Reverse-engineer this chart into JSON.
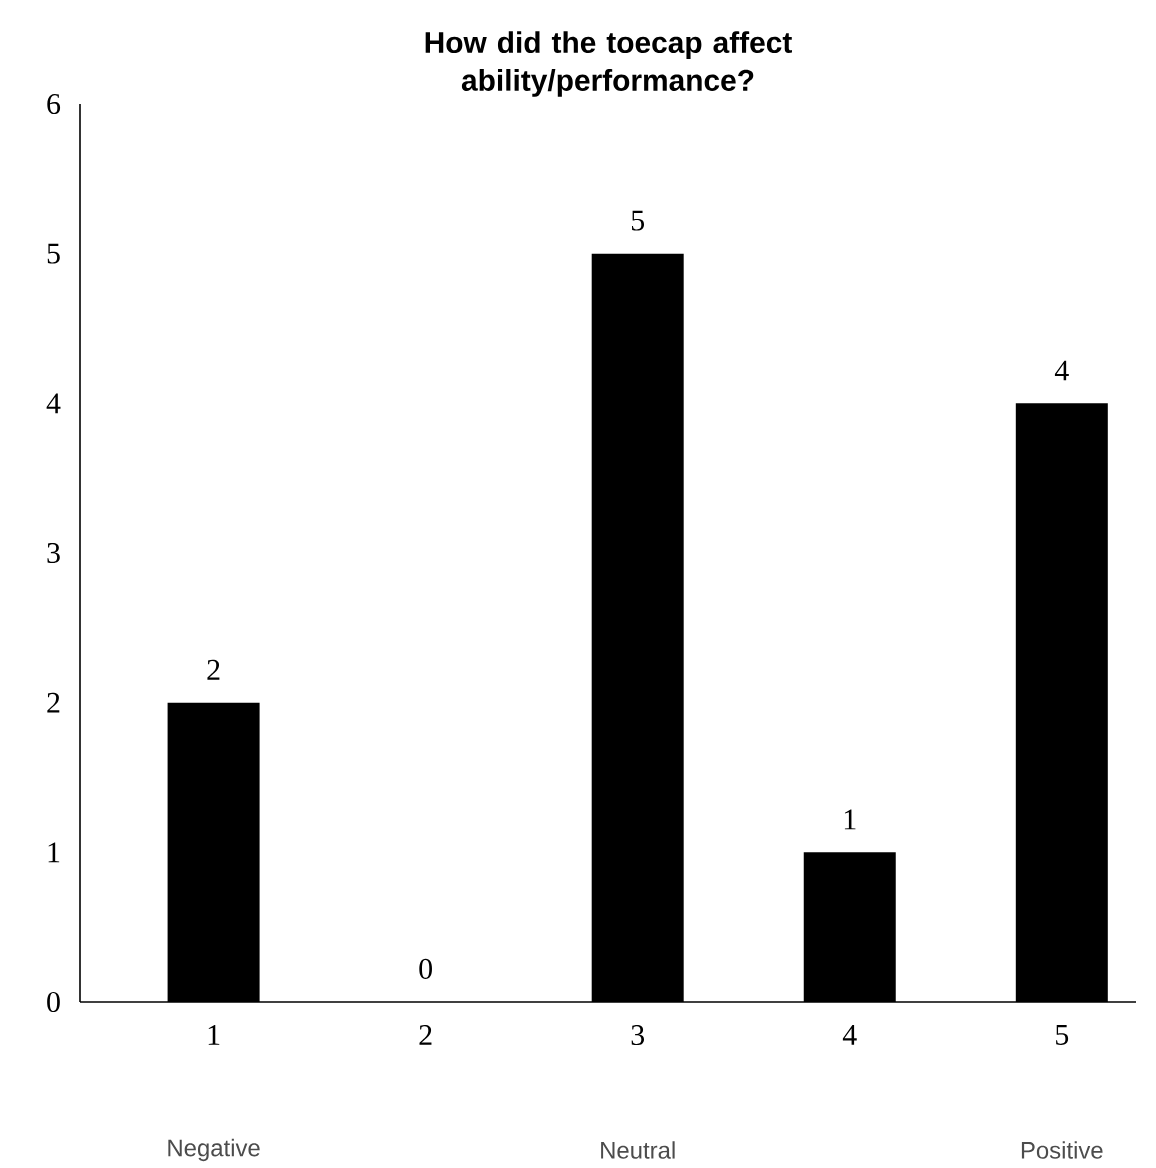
{
  "chart_data": {
    "type": "bar",
    "title": "How did the toecap affect ability/performance?",
    "categories": [
      "1",
      "2",
      "3",
      "4",
      "5"
    ],
    "values": [
      2,
      0,
      5,
      1,
      4
    ],
    "color": "#000000",
    "ylim": [
      0,
      6
    ],
    "yticks": [
      0,
      1,
      2,
      3,
      4,
      5,
      6
    ],
    "data_labels": true,
    "grid": false,
    "annotations": [
      "Negative",
      "Neutral",
      "Positive"
    ]
  }
}
